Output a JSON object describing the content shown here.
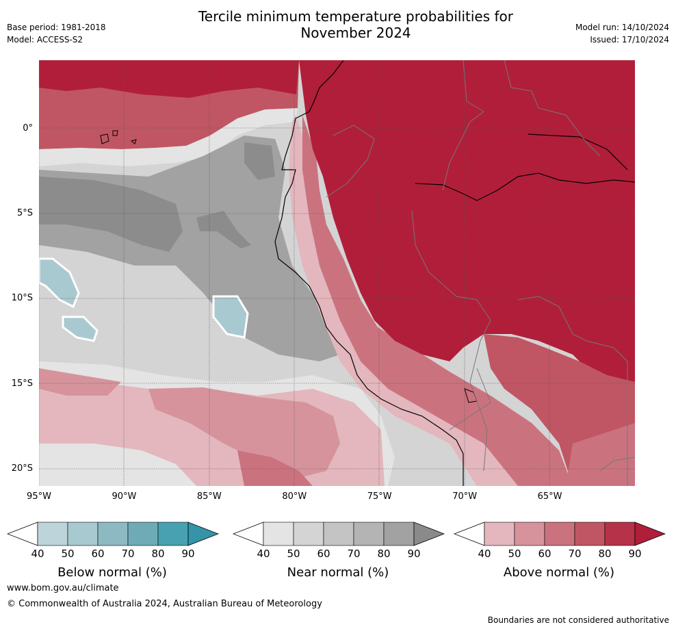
{
  "header": {
    "title_line1": "Tercile minimum temperature probabilities for",
    "title_line2": "November 2024",
    "base_period": "Base period: 1981-2018",
    "model": "Model: ACCESS-S2",
    "model_run": "Model run: 14/10/2024",
    "issued": "Issued: 17/10/2024"
  },
  "map": {
    "lat_labels": [
      "0°",
      "5°S",
      "10°S",
      "15°S",
      "20°S"
    ],
    "lon_labels": [
      "95°W",
      "90°W",
      "85°W",
      "80°W",
      "75°W",
      "70°W",
      "65°W"
    ],
    "lat_values": [
      0,
      -5,
      -10,
      -15,
      -20
    ],
    "lon_values": [
      -95,
      -90,
      -85,
      -80,
      -75,
      -70,
      -65
    ],
    "extent": {
      "lon_min": -95,
      "lon_max": -60,
      "lat_min": -21,
      "lat_max": 4
    },
    "colors": {
      "above_high": "#b11e3a",
      "near_gray": "#8c8c8c"
    }
  },
  "colorbars": [
    {
      "id": "below",
      "title": "Below normal (%)",
      "ticks": [
        "40",
        "50",
        "60",
        "70",
        "80",
        "90"
      ],
      "colors": [
        "#ffffff",
        "#bcd4da",
        "#a8c9cf",
        "#8db9c3",
        "#6eabb6",
        "#48a1b1",
        "#3594a8"
      ]
    },
    {
      "id": "near",
      "title": "Near normal (%)",
      "ticks": [
        "40",
        "50",
        "60",
        "70",
        "80",
        "90"
      ],
      "colors": [
        "#ffffff",
        "#e4e4e4",
        "#d4d4d4",
        "#c4c4c4",
        "#b4b4b4",
        "#a2a2a2",
        "#8a8a8a"
      ]
    },
    {
      "id": "above",
      "title": "Above normal (%)",
      "ticks": [
        "40",
        "50",
        "60",
        "70",
        "80",
        "90"
      ],
      "colors": [
        "#ffffff",
        "#e3b7bd",
        "#d6939c",
        "#ca737f",
        "#c05663",
        "#b63248",
        "#b11e3a"
      ]
    }
  ],
  "footer": {
    "url": "www.bom.gov.au/climate",
    "copyright": "© Commonwealth of Australia 2024, Australian Bureau of Meteorology",
    "disclaimer": "Boundaries are not considered authoritative"
  }
}
